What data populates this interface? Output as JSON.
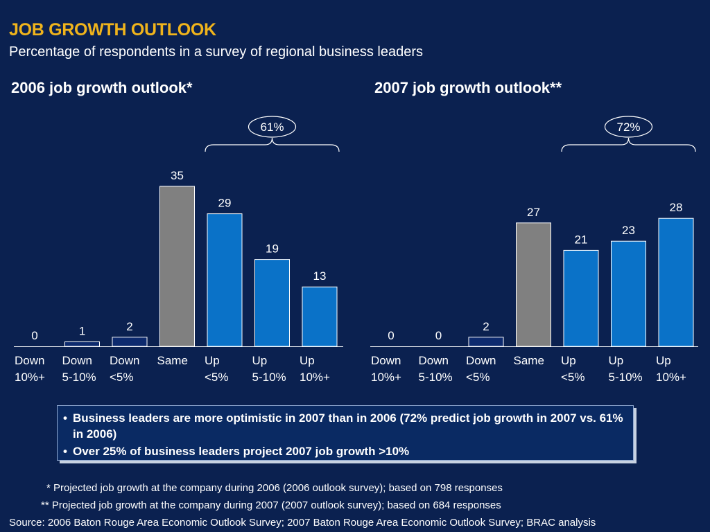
{
  "header": {
    "title": "JOB GROWTH OUTLOOK",
    "subtitle": "Percentage of respondents in a survey of regional business leaders"
  },
  "colors": {
    "background": "#0b2150",
    "title": "#f0b41c",
    "bar_down": "#0d2a6e",
    "bar_same": "#808080",
    "bar_up": "#0a72c8",
    "bar_outline": "#ffffff"
  },
  "chart_data": [
    {
      "type": "bar",
      "title": "2006 job growth outlook*",
      "categories": [
        "Down 10%+",
        "Down 5-10%",
        "Down <5%",
        "Same",
        "Up <5%",
        "Up 5-10%",
        "Up 10%+"
      ],
      "category_lines": [
        [
          "Down",
          "10%+"
        ],
        [
          "Down",
          "5-10%"
        ],
        [
          "Down",
          "<5%"
        ],
        [
          "Same",
          ""
        ],
        [
          "Up",
          "<5%"
        ],
        [
          "Up",
          "5-10%"
        ],
        [
          "Up",
          "10%+"
        ]
      ],
      "values": [
        0,
        1,
        2,
        35,
        29,
        19,
        13
      ],
      "bracket_label": "61%",
      "grid": false,
      "ylim": [
        0,
        35
      ]
    },
    {
      "type": "bar",
      "title": "2007 job growth outlook**",
      "categories": [
        "Down 10%+",
        "Down 5-10%",
        "Down <5%",
        "Same",
        "Up <5%",
        "Up 5-10%",
        "Up 10%+"
      ],
      "category_lines": [
        [
          "Down",
          "10%+"
        ],
        [
          "Down",
          "5-10%"
        ],
        [
          "Down",
          "<5%"
        ],
        [
          "Same",
          ""
        ],
        [
          "Up",
          "<5%"
        ],
        [
          "Up",
          "5-10%"
        ],
        [
          "Up",
          "10%+"
        ]
      ],
      "values": [
        0,
        0,
        2,
        27,
        21,
        23,
        28
      ],
      "bracket_label": "72%",
      "grid": false,
      "ylim": [
        0,
        35
      ]
    }
  ],
  "callout": {
    "bullets": [
      "Business leaders are more optimistic in 2007 than in 2006 (72% predict job growth in 2007 vs. 61% in 2006)",
      "Over 25% of business leaders project 2007 job growth >10%"
    ]
  },
  "footnotes": {
    "fn1": "* Projected job growth at the company during 2006 (2006 outlook survey); based on 798 responses",
    "fn2": "** Projected job growth at the company during 2007 (2007 outlook survey); based on 684 responses",
    "source": "Source: 2006 Baton Rouge Area Economic Outlook Survey; 2007 Baton Rouge Area Economic Outlook Survey; BRAC analysis"
  }
}
